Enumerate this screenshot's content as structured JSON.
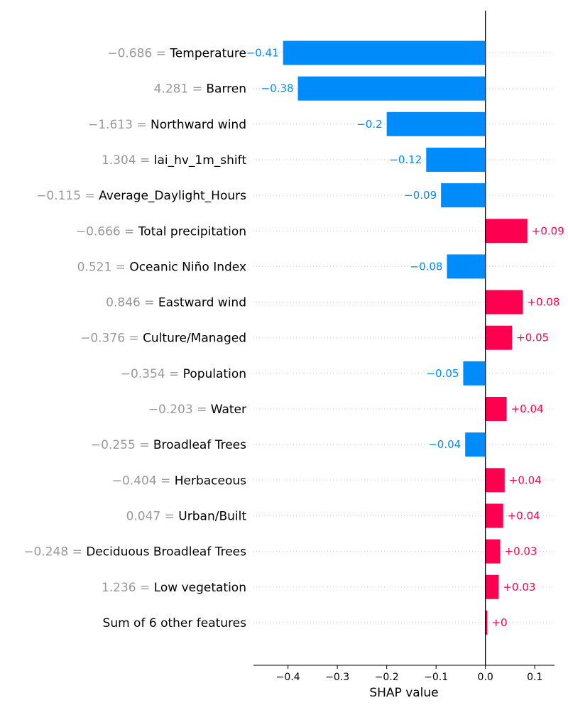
{
  "chart_data": {
    "type": "bar",
    "orientation": "horizontal",
    "chart_style": "shap-waterfall-bar",
    "xlabel": "SHAP value",
    "xlim": [
      -0.47,
      0.14
    ],
    "xticks": [
      -0.4,
      -0.3,
      -0.2,
      -0.1,
      0.0,
      0.1
    ],
    "xtick_labels": [
      "−0.4",
      "−0.3",
      "−0.2",
      "−0.1",
      "0.0",
      "0.1"
    ],
    "colors": {
      "positive": "#ff0051",
      "negative": "#008bfb",
      "feature_value": "#999999",
      "grid": "#cccccc"
    },
    "features": [
      {
        "value": "−0.686",
        "name": "Temperature",
        "shap": -0.41,
        "label": "−0.41"
      },
      {
        "value": "4.281",
        "name": "Barren",
        "shap": -0.38,
        "label": "−0.38"
      },
      {
        "value": "−1.613",
        "name": "Northward wind",
        "shap": -0.2,
        "label": "−0.2"
      },
      {
        "value": "1.304",
        "name": "lai_hv_1m_shift",
        "shap": -0.12,
        "label": "−0.12"
      },
      {
        "value": "−0.115",
        "name": "Average_Daylight_Hours",
        "shap": -0.09,
        "label": "−0.09"
      },
      {
        "value": "−0.666",
        "name": "Total precipitation",
        "shap": 0.085,
        "label": "+0.09"
      },
      {
        "value": "0.521",
        "name": "Oceanic Niño Index",
        "shap": -0.078,
        "label": "−0.08"
      },
      {
        "value": "0.846",
        "name": "Eastward wind",
        "shap": 0.076,
        "label": "+0.08"
      },
      {
        "value": "−0.376",
        "name": "Culture/Managed",
        "shap": 0.054,
        "label": "+0.05"
      },
      {
        "value": "−0.354",
        "name": "Population",
        "shap": -0.045,
        "label": "−0.05"
      },
      {
        "value": "−0.203",
        "name": "Water",
        "shap": 0.043,
        "label": "+0.04"
      },
      {
        "value": "−0.255",
        "name": "Broadleaf Trees",
        "shap": -0.041,
        "label": "−0.04"
      },
      {
        "value": "−0.404",
        "name": "Herbaceous",
        "shap": 0.039,
        "label": "+0.04"
      },
      {
        "value": "0.047",
        "name": "Urban/Built",
        "shap": 0.036,
        "label": "+0.04"
      },
      {
        "value": "−0.248",
        "name": "Deciduous Broadleaf Trees",
        "shap": 0.03,
        "label": "+0.03"
      },
      {
        "value": "1.236",
        "name": "Low vegetation",
        "shap": 0.027,
        "label": "+0.03"
      },
      {
        "value": "",
        "name": "Sum of 6 other features",
        "shap": 0.004,
        "label": "+0"
      }
    ]
  }
}
